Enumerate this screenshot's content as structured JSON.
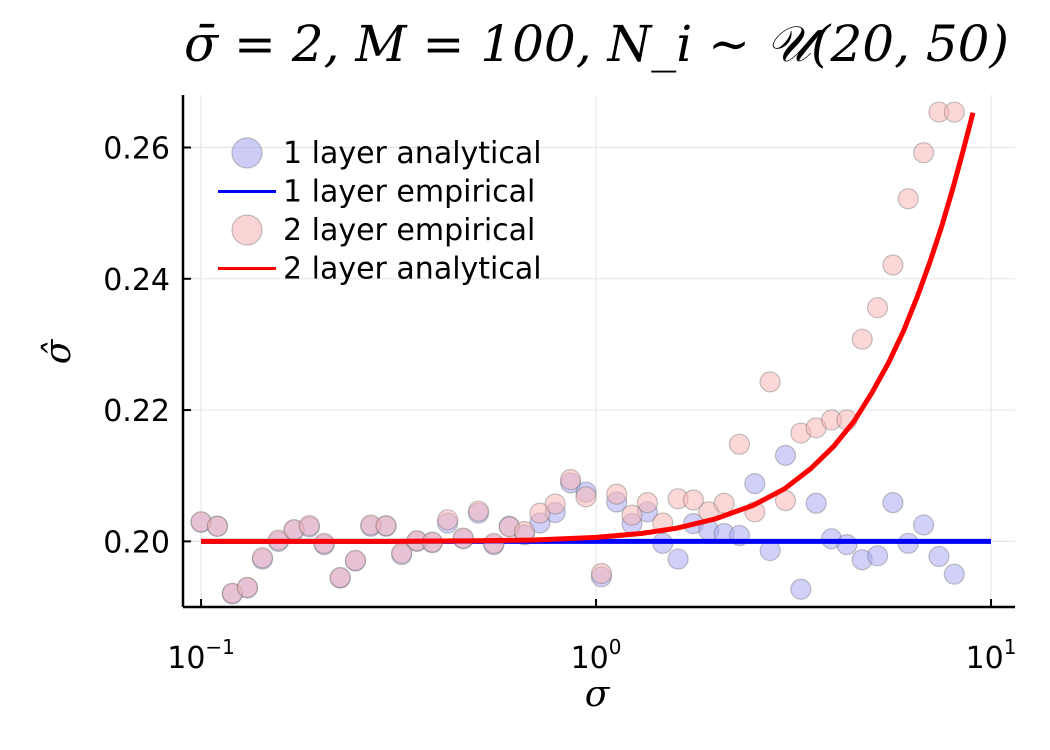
{
  "chart_data": {
    "type": "scatter",
    "title": "σ̄ = 2, M = 100, N_i ∼ 𝒰(20, 50)",
    "xlabel": "σ",
    "ylabel": "σ̂",
    "xscale": "log10",
    "xlim": [
      0.09,
      11.5
    ],
    "ylim": [
      0.19,
      0.268
    ],
    "xticks": [
      {
        "value": 0.1,
        "base": "10",
        "exp": "−1"
      },
      {
        "value": 1,
        "base": "10",
        "exp": "0"
      },
      {
        "value": 10,
        "base": "10",
        "exp": "1"
      }
    ],
    "yticks": [
      {
        "value": 0.2,
        "label": "0.20"
      },
      {
        "value": 0.22,
        "label": "0.22"
      },
      {
        "value": 0.24,
        "label": "0.24"
      },
      {
        "value": 0.26,
        "label": "0.26"
      }
    ],
    "grid": true,
    "legend_position": "top-left",
    "colors": {
      "one_layer": "#0000ff",
      "two_layer": "#ff0000",
      "one_layer_marker": "#aaaaf2",
      "two_layer_marker": "#f7b7b7",
      "overlap": "#b57fae"
    },
    "series": [
      {
        "name": "1 layer analytical",
        "kind": "markers",
        "color": "#aaaaf2",
        "points": [
          [
            0.1,
            0.2029
          ],
          [
            0.11,
            0.2023
          ],
          [
            0.12,
            0.192
          ],
          [
            0.131,
            0.1929
          ],
          [
            0.143,
            0.1973
          ],
          [
            0.157,
            0.2
          ],
          [
            0.172,
            0.2017
          ],
          [
            0.188,
            0.2022
          ],
          [
            0.205,
            0.1995
          ],
          [
            0.225,
            0.1944
          ],
          [
            0.246,
            0.197
          ],
          [
            0.269,
            0.2023
          ],
          [
            0.294,
            0.2023
          ],
          [
            0.322,
            0.198
          ],
          [
            0.352,
            0.2
          ],
          [
            0.385,
            0.1998
          ],
          [
            0.421,
            0.2028
          ],
          [
            0.461,
            0.2004
          ],
          [
            0.504,
            0.2043
          ],
          [
            0.551,
            0.1995
          ],
          [
            0.603,
            0.2023
          ],
          [
            0.659,
            0.201
          ],
          [
            0.721,
            0.2028
          ],
          [
            0.788,
            0.2044
          ],
          [
            0.862,
            0.2089
          ],
          [
            0.943,
            0.2075
          ],
          [
            1.032,
            0.1946
          ],
          [
            1.128,
            0.206
          ],
          [
            1.233,
            0.2027
          ],
          [
            1.349,
            0.2045
          ],
          [
            1.475,
            0.1997
          ],
          [
            1.613,
            0.1973
          ],
          [
            1.764,
            0.2027
          ],
          [
            1.929,
            0.2017
          ],
          [
            2.11,
            0.2012
          ],
          [
            2.307,
            0.2009
          ],
          [
            2.523,
            0.2088
          ],
          [
            2.759,
            0.1986
          ],
          [
            3.017,
            0.2131
          ],
          [
            3.3,
            0.1927
          ],
          [
            3.608,
            0.2058
          ],
          [
            3.946,
            0.2004
          ],
          [
            4.315,
            0.1995
          ],
          [
            4.719,
            0.1972
          ],
          [
            5.161,
            0.1978
          ],
          [
            5.644,
            0.2059
          ],
          [
            6.172,
            0.1997
          ],
          [
            6.75,
            0.2025
          ],
          [
            7.382,
            0.1977
          ],
          [
            8.072,
            0.195
          ]
        ]
      },
      {
        "name": "1 layer empirical",
        "kind": "line",
        "color": "#0000ff",
        "points": [
          [
            0.1,
            0.2
          ],
          [
            10.0,
            0.2
          ]
        ]
      },
      {
        "name": "2 layer empirical",
        "kind": "markers",
        "color": "#f7b7b7",
        "points": [
          [
            0.1,
            0.203
          ],
          [
            0.11,
            0.2023
          ],
          [
            0.12,
            0.1921
          ],
          [
            0.131,
            0.193
          ],
          [
            0.143,
            0.1975
          ],
          [
            0.157,
            0.2002
          ],
          [
            0.172,
            0.2018
          ],
          [
            0.188,
            0.2024
          ],
          [
            0.205,
            0.1997
          ],
          [
            0.225,
            0.1945
          ],
          [
            0.246,
            0.1971
          ],
          [
            0.269,
            0.2025
          ],
          [
            0.294,
            0.2024
          ],
          [
            0.322,
            0.1982
          ],
          [
            0.352,
            0.2001
          ],
          [
            0.385,
            0.1999
          ],
          [
            0.421,
            0.2033
          ],
          [
            0.461,
            0.2005
          ],
          [
            0.504,
            0.2046
          ],
          [
            0.551,
            0.1997
          ],
          [
            0.603,
            0.2022
          ],
          [
            0.659,
            0.2015
          ],
          [
            0.721,
            0.2043
          ],
          [
            0.788,
            0.2057
          ],
          [
            0.862,
            0.2094
          ],
          [
            0.943,
            0.2068
          ],
          [
            1.032,
            0.1951
          ],
          [
            1.128,
            0.2072
          ],
          [
            1.233,
            0.204
          ],
          [
            1.349,
            0.2059
          ],
          [
            1.475,
            0.2028
          ],
          [
            1.613,
            0.2065
          ],
          [
            1.764,
            0.2063
          ],
          [
            1.929,
            0.2045
          ],
          [
            2.11,
            0.2058
          ],
          [
            2.307,
            0.2148
          ],
          [
            2.523,
            0.2045
          ],
          [
            2.759,
            0.2243
          ],
          [
            3.017,
            0.2062
          ],
          [
            3.3,
            0.2165
          ],
          [
            3.608,
            0.2173
          ],
          [
            3.946,
            0.2185
          ],
          [
            4.315,
            0.2185
          ],
          [
            4.719,
            0.2308
          ],
          [
            5.161,
            0.2356
          ],
          [
            5.644,
            0.2421
          ],
          [
            6.172,
            0.2522
          ],
          [
            6.75,
            0.2592
          ],
          [
            7.382,
            0.2654
          ],
          [
            8.072,
            0.2654
          ]
        ]
      },
      {
        "name": "2 layer analytical",
        "kind": "line",
        "color": "#ff0000",
        "points": [
          [
            0.1,
            0.2
          ],
          [
            0.3,
            0.2
          ],
          [
            0.5,
            0.2001
          ],
          [
            0.7,
            0.2002
          ],
          [
            1.0,
            0.2006
          ],
          [
            1.3,
            0.2012
          ],
          [
            1.6,
            0.202
          ],
          [
            2.0,
            0.2034
          ],
          [
            2.5,
            0.2055
          ],
          [
            3.0,
            0.208
          ],
          [
            3.5,
            0.2111
          ],
          [
            4.0,
            0.2145
          ],
          [
            4.5,
            0.2183
          ],
          [
            5.0,
            0.2227
          ],
          [
            5.5,
            0.2272
          ],
          [
            6.0,
            0.232
          ],
          [
            6.5,
            0.2372
          ],
          [
            7.0,
            0.2425
          ],
          [
            7.5,
            0.248
          ],
          [
            8.0,
            0.2537
          ],
          [
            8.5,
            0.2595
          ],
          [
            9.0,
            0.2653
          ]
        ]
      }
    ]
  }
}
